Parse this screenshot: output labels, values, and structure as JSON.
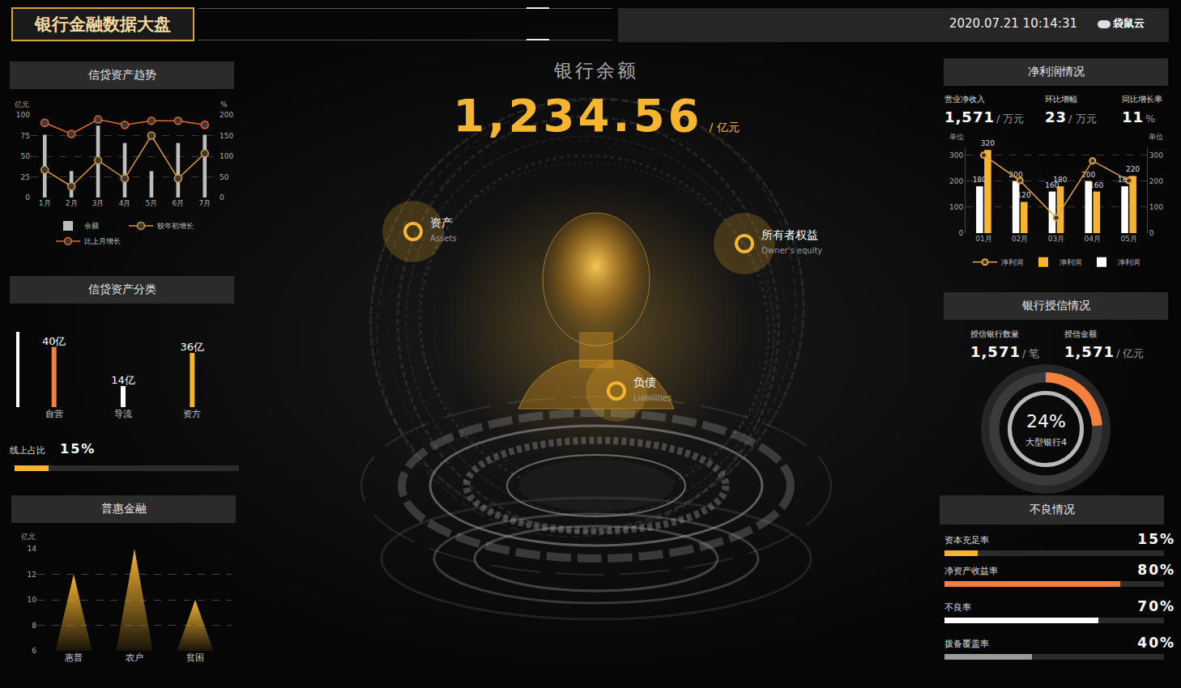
{
  "header": {
    "title": "银行金融数据大盘",
    "datetime": "2020.07.21 10:14:31",
    "logo": "袋鼠云"
  },
  "center": {
    "title": "银行余额",
    "value": "1,234.56",
    "unit": "/ 亿元",
    "nodes": [
      {
        "label": "资产",
        "sublabel": "Assets"
      },
      {
        "label": "所有者权益",
        "sublabel": "Owner's equity"
      },
      {
        "label": "负债",
        "sublabel": "Liabilities"
      }
    ]
  },
  "chart_data": [
    {
      "type": "bar",
      "title": "信贷资产趋势",
      "categories": [
        "1月",
        "2月",
        "3月",
        "4月",
        "5月",
        "6月",
        "7月"
      ],
      "series": [
        {
          "name": "余额",
          "type": "bar",
          "color": "#bdbdbd",
          "values": [
            76,
            32,
            87,
            66,
            32,
            66,
            76
          ]
        },
        {
          "name": "较年初增长",
          "type": "line",
          "axis": "y2",
          "color": "#d99a35",
          "marker": "circle",
          "values": [
            67,
            27,
            90,
            46,
            150,
            46,
            107
          ]
        },
        {
          "name": "比上月增长",
          "type": "line",
          "axis": "y2",
          "color": "#e8692c",
          "marker": "circle",
          "values": [
            181,
            154,
            189,
            176,
            186,
            186,
            176
          ]
        }
      ],
      "ylabel": "亿元",
      "y2label": "%",
      "ylim": [
        0,
        100
      ],
      "yticks": [
        0,
        25,
        50,
        75,
        100
      ],
      "y2lim": [
        0,
        200
      ],
      "y2ticks": [
        0,
        50,
        100,
        150,
        200
      ],
      "grid": true,
      "legend": "bottom"
    },
    {
      "type": "bar",
      "title": "信贷资产分类",
      "categories": [
        "自营",
        "导流",
        "资方"
      ],
      "values": [
        40,
        14,
        36
      ],
      "value_labels": [
        "40亿",
        "14亿",
        "36亿"
      ],
      "colors": [
        "#f5803e",
        "#ffffff",
        "#f5b52f"
      ],
      "data_labels": true,
      "ylim": [
        0,
        50
      ],
      "yticks": [],
      "tick_labels": "x"
    },
    {
      "type": "bar",
      "marker": "triangle",
      "title": "普惠金融",
      "categories": [
        "惠普",
        "农户",
        "贫困"
      ],
      "values": [
        12,
        14,
        10
      ],
      "color": "#f5b52f",
      "ylabel": "亿元",
      "ylim": [
        6,
        14
      ],
      "yticks": [
        6,
        8,
        10,
        12,
        14
      ],
      "grid": true
    },
    {
      "type": "bar",
      "title": "净利润情况",
      "categories": [
        "01月",
        "02月",
        "03月",
        "04月",
        "05月"
      ],
      "series": [
        {
          "name": "净利润",
          "type": "line",
          "axis": "y2",
          "color": "#e8a33a",
          "marker": "circle",
          "values": [
            300,
            202,
            59,
            278,
            202
          ]
        },
        {
          "name": "净利润",
          "type": "bar",
          "color": "#f5b52f",
          "data_labels": true,
          "values": [
            320,
            120,
            180,
            160,
            220
          ]
        },
        {
          "name": "净利润",
          "type": "bar",
          "color": "#ffffff",
          "data_labels": true,
          "values": [
            180,
            200,
            160,
            200,
            180
          ]
        }
      ],
      "ylabel": "单位",
      "y2label": "单位",
      "ylim": [
        0,
        330
      ],
      "yticks": [
        0,
        100,
        200,
        300
      ],
      "y2lim": [
        0,
        330
      ],
      "y2ticks": [
        0,
        100,
        200,
        300
      ],
      "grid": true,
      "legend": "bottom"
    },
    {
      "type": "pie",
      "title": "银行授信情况",
      "categories": [
        "大型银行4",
        null
      ],
      "values": [
        24,
        76
      ],
      "value_labels": [
        "24%",
        null
      ],
      "colors": [
        "#f5803e",
        "#3a3a3a"
      ]
    }
  ],
  "panels": {
    "net_profit_kpis": [
      {
        "label": "营业净收入",
        "value": "1,571",
        "unit": "/ 万元"
      },
      {
        "label": "环比增幅",
        "value": "23",
        "unit": "/ 万元"
      },
      {
        "label": "同比增长率",
        "value": "11",
        "unit": "%"
      }
    ],
    "credit_kpis": [
      {
        "label": "授信银行数量",
        "value": "1,571",
        "unit": "/ 笔"
      },
      {
        "label": "授信金额",
        "value": "1,571",
        "unit": "/ 亿元"
      }
    ],
    "online_share": {
      "label": "线上占比",
      "value": 15,
      "value_label": "15%",
      "max": 100,
      "color": "#f5b52f"
    },
    "npl": {
      "title": "不良情况",
      "max": 100,
      "rows": [
        {
          "label": "资本充足率",
          "value": 15,
          "value_label": "15%",
          "color": "#f5b52f"
        },
        {
          "label": "净资产收益率",
          "value": 80,
          "value_label": "80%",
          "color": "#f5803e"
        },
        {
          "label": "不良率",
          "value": 70,
          "value_label": "70%",
          "color": "#ffffff"
        },
        {
          "label": "拨备覆盖率",
          "value": 40,
          "value_label": "40%",
          "color": "#9a9a9a"
        }
      ]
    }
  }
}
